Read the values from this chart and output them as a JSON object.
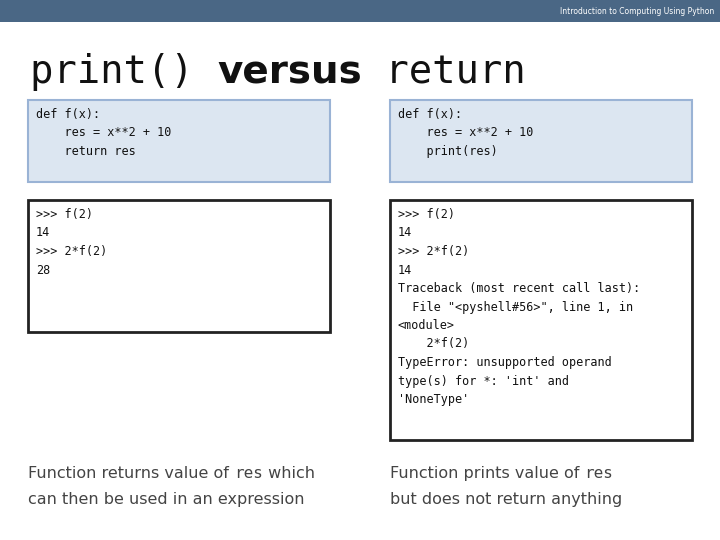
{
  "bg_color": "#ffffff",
  "header_bg": "#4a6785",
  "header_text": "Introduction to Computing Using Python",
  "header_text_color": "#ffffff",
  "title_mono": "print() ",
  "title_bold": "versus",
  "title_mono2": " return",
  "box1_code": "def f(x):\n    res = x**2 + 10\n    return res",
  "box1_bg": "#dce6f1",
  "box1_border": "#9ab3d5",
  "box2_code": "def f(x):\n    res = x**2 + 10\n    print(res)",
  "box2_bg": "#dce6f1",
  "box2_border": "#9ab3d5",
  "box3_code": ">>> f(2)\n14\n>>> 2*f(2)\n28",
  "box3_bg": "#ffffff",
  "box3_border": "#222222",
  "box4_code": ">>> f(2)\n14\n>>> 2*f(2)\n14\nTraceback (most recent call last):\n  File \"<pyshell#56>\", line 1, in\n<module>\n    2*f(2)\nTypeError: unsupported operand\ntype(s) for *: 'int' and\n'NoneType'",
  "box4_bg": "#ffffff",
  "box4_border": "#222222",
  "caption1_line1": "Function returns value of ",
  "caption1_mono": "res",
  "caption1_line1b": " which",
  "caption1_line2": "can then be used in an expression",
  "caption2_line1": "Function prints value of ",
  "caption2_mono": "res",
  "caption2_line2": "but does not return anything",
  "code_fontsize": 8.5,
  "caption_fontsize": 11.5,
  "title_fontsize": 28
}
